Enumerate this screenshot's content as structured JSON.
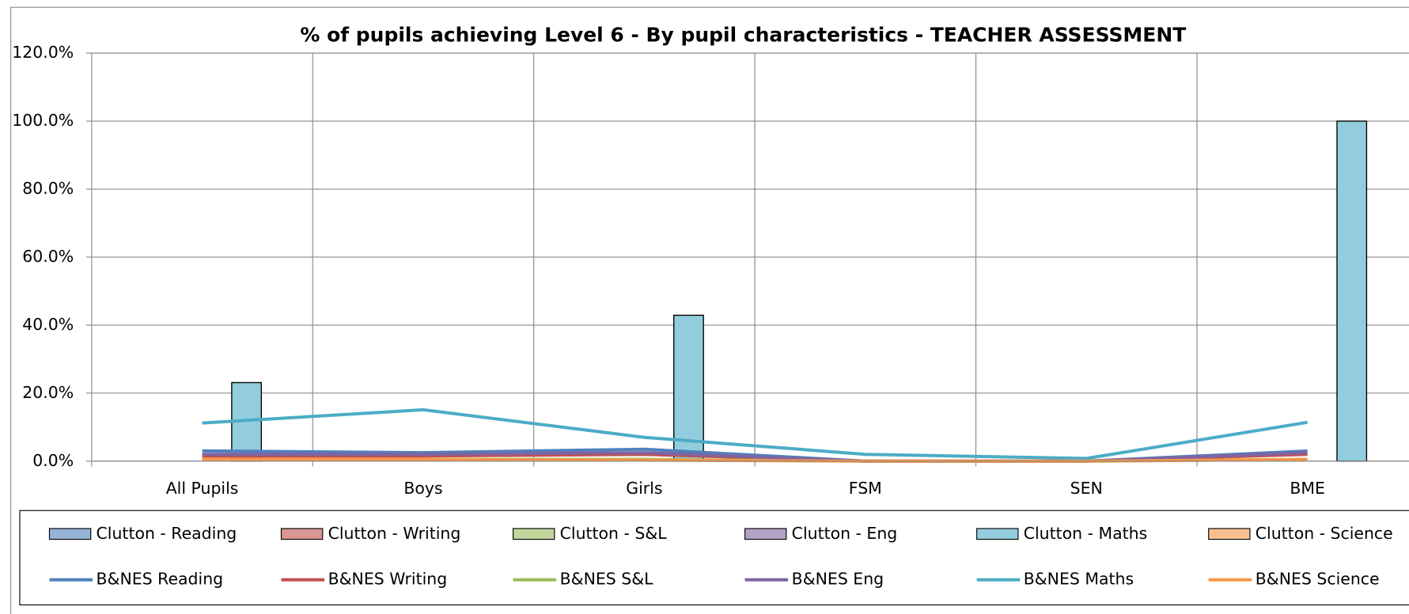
{
  "chart_data": {
    "type": "bar-line",
    "title": "% of pupils achieving Level 6 - By pupil characteristics - TEACHER ASSESSMENT",
    "categories": [
      "All Pupils",
      "Boys",
      "Girls",
      "FSM",
      "SEN",
      "BME"
    ],
    "ylim": [
      0,
      120
    ],
    "yticks": [
      {
        "value": 0,
        "label": "0.0%"
      },
      {
        "value": 20,
        "label": "20.0%"
      },
      {
        "value": 40,
        "label": "40.0%"
      },
      {
        "value": 60,
        "label": "60.0%"
      },
      {
        "value": 80,
        "label": "80.0%"
      },
      {
        "value": 100,
        "label": "100.0%"
      },
      {
        "value": 120,
        "label": "120.0%"
      }
    ],
    "grid": true,
    "legend": "bottom",
    "series": [
      {
        "name": "Clutton - Reading",
        "kind": "bar",
        "color": "#95b3d7",
        "values": [
          0,
          0,
          0,
          0,
          0,
          0
        ]
      },
      {
        "name": "Clutton - Writing",
        "kind": "bar",
        "color": "#d99694",
        "values": [
          0,
          0,
          0,
          0,
          0,
          0
        ]
      },
      {
        "name": "Clutton - S&L",
        "kind": "bar",
        "color": "#c3d69b",
        "values": [
          0,
          0,
          0,
          0,
          0,
          0
        ]
      },
      {
        "name": "Clutton - Eng",
        "kind": "bar",
        "color": "#b3a2c7",
        "values": [
          0,
          0,
          0,
          0,
          0,
          0
        ]
      },
      {
        "name": "Clutton - Maths",
        "kind": "bar",
        "color": "#93cddd",
        "values": [
          23.1,
          0,
          42.9,
          0,
          0,
          100
        ]
      },
      {
        "name": "Clutton - Science",
        "kind": "bar",
        "color": "#fac090",
        "values": [
          0,
          0,
          0,
          0,
          0,
          0
        ]
      },
      {
        "name": "B&NES Reading",
        "kind": "line",
        "color": "#4f81bd",
        "values": [
          3.0,
          2.5,
          3.5,
          0,
          0,
          3.0
        ]
      },
      {
        "name": "B&NES Writing",
        "kind": "line",
        "color": "#c0504d",
        "values": [
          1.5,
          1.5,
          2.0,
          0,
          0,
          2.0
        ]
      },
      {
        "name": "B&NES S&L",
        "kind": "line",
        "color": "#9bbb59",
        "values": [
          0.5,
          0.5,
          0.5,
          0,
          0,
          0.5
        ]
      },
      {
        "name": "B&NES Eng",
        "kind": "line",
        "color": "#8064a2",
        "values": [
          2.0,
          2.0,
          2.5,
          0,
          0,
          2.5
        ]
      },
      {
        "name": "B&NES Maths",
        "kind": "line",
        "color": "#4bacc6",
        "values": [
          11.2,
          15.1,
          7.0,
          2.0,
          0.8,
          11.4
        ]
      },
      {
        "name": "B&NES Science",
        "kind": "line",
        "color": "#f79646",
        "values": [
          0.5,
          0.5,
          0.3,
          0,
          0,
          0.5
        ]
      }
    ]
  }
}
